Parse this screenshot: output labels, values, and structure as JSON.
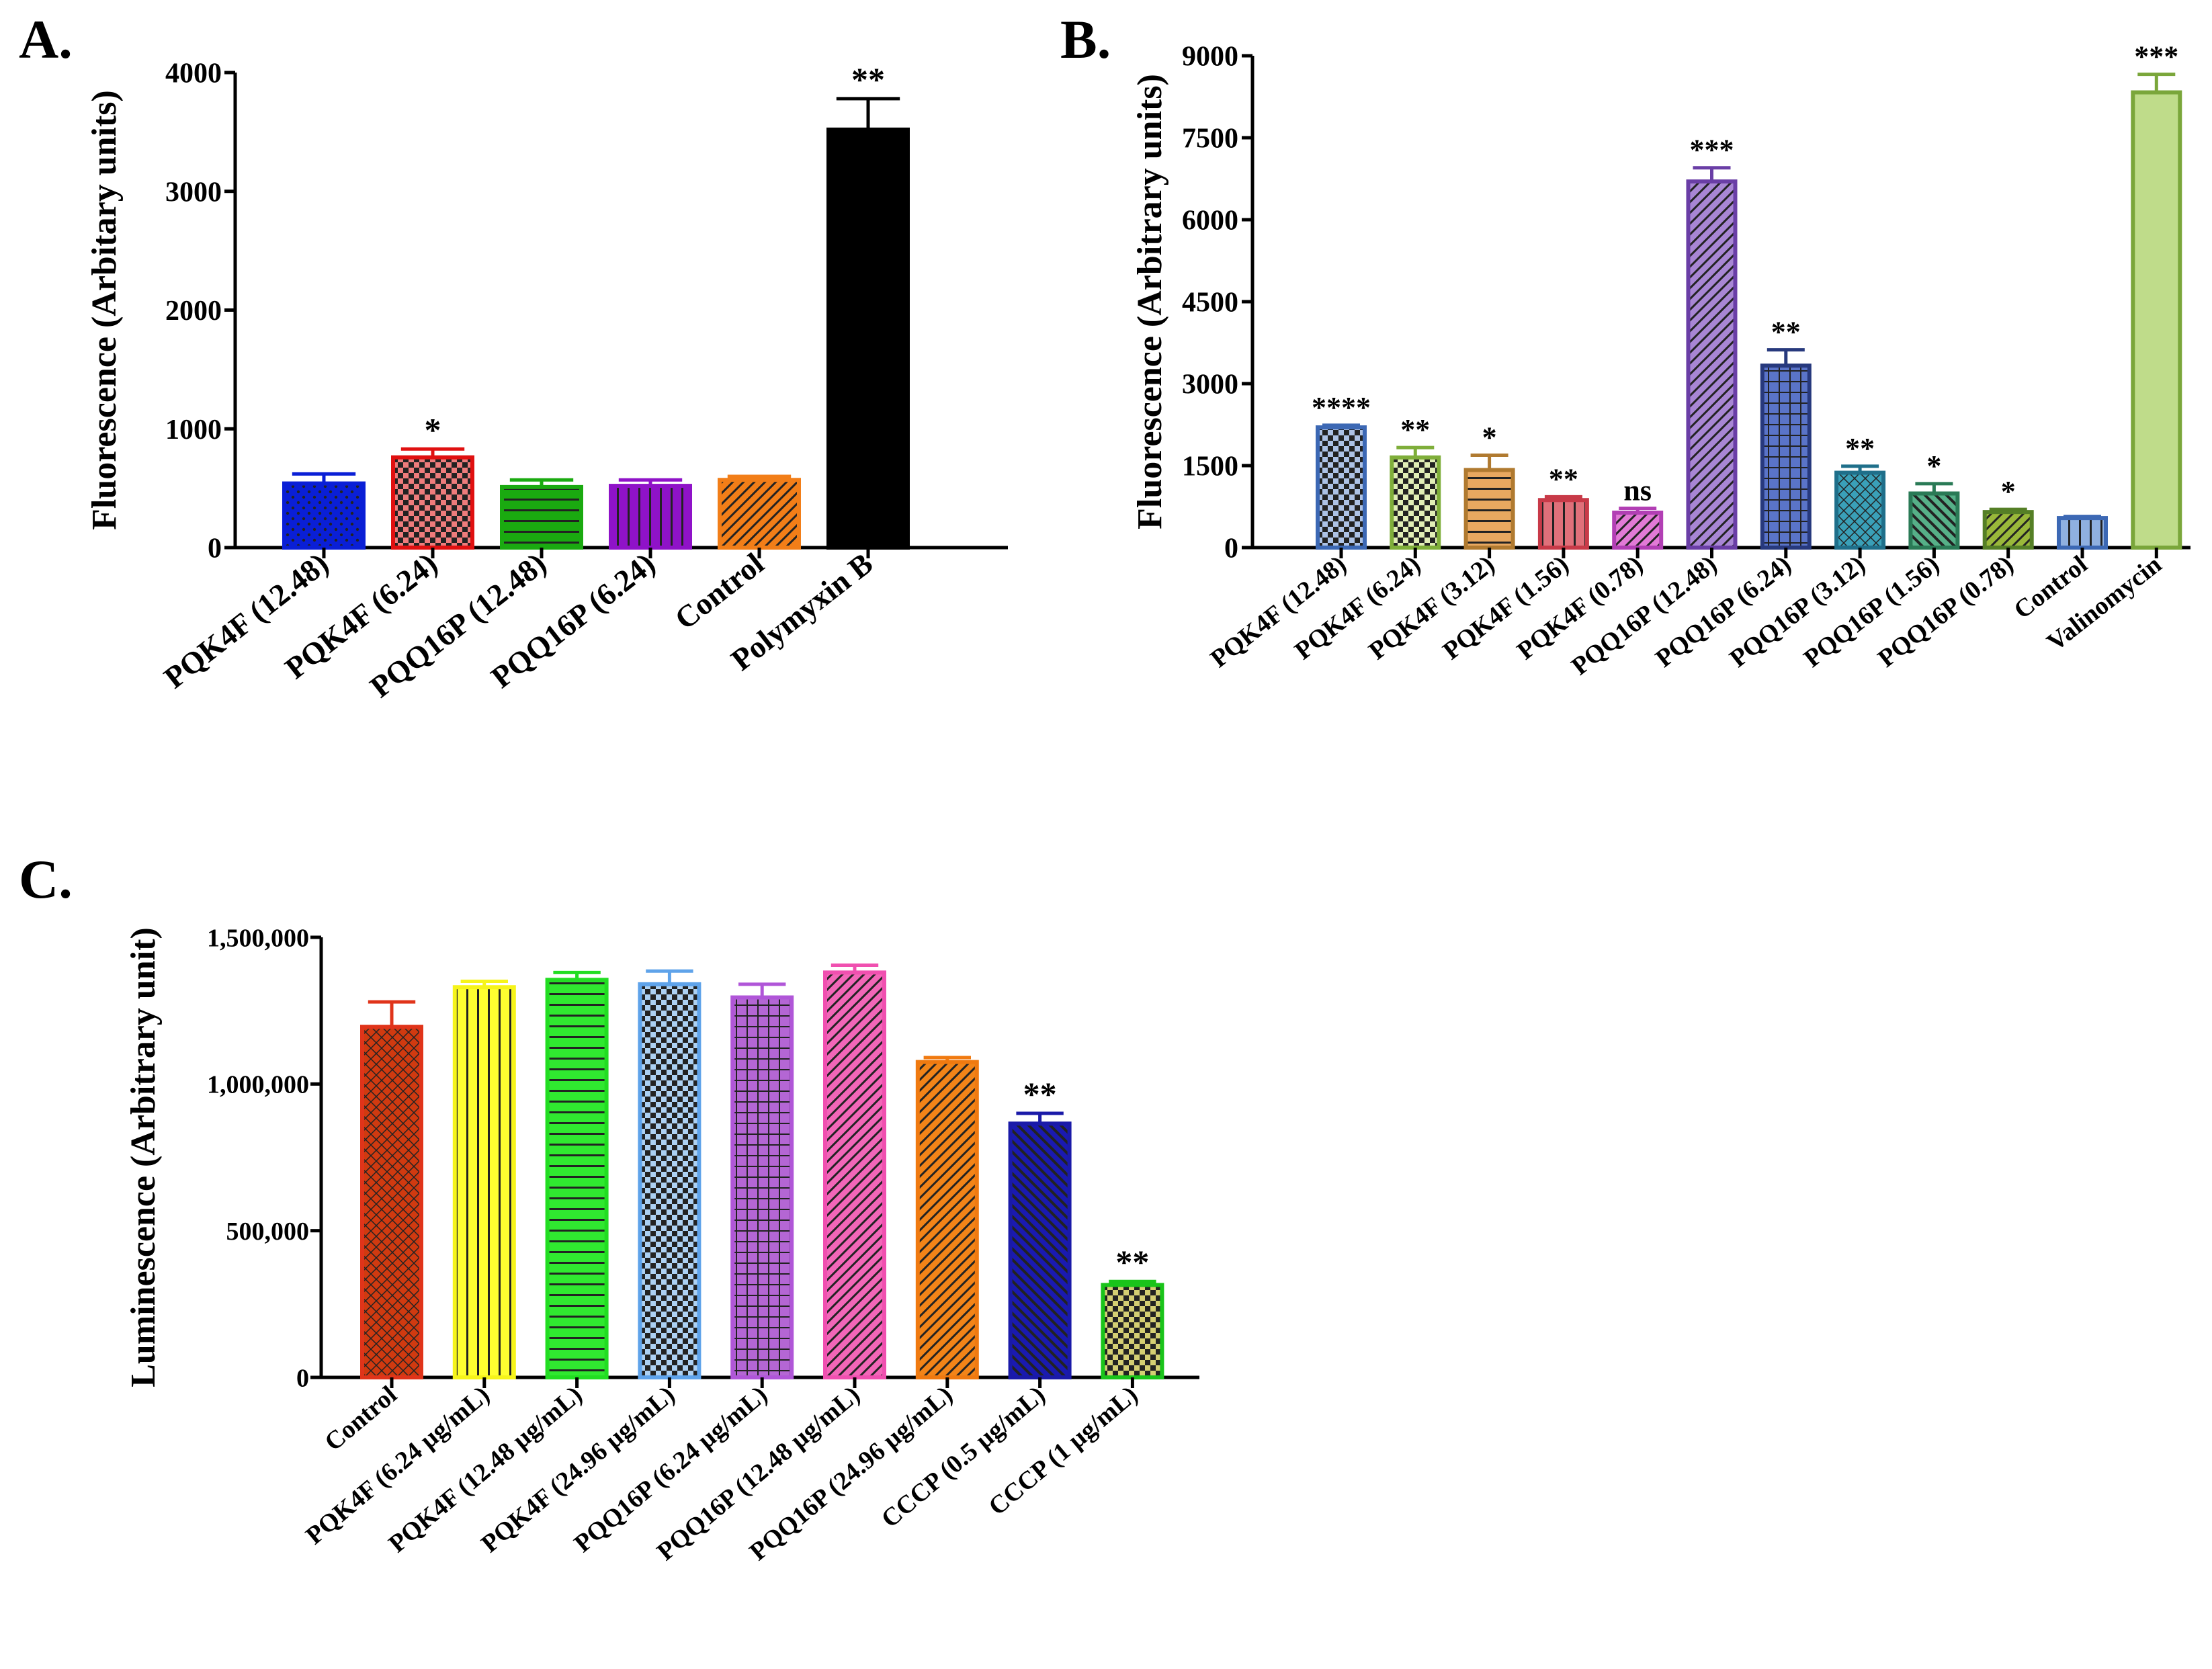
{
  "panels": {
    "a": {
      "label": "A."
    },
    "b": {
      "label": "B."
    },
    "c": {
      "label": "C."
    }
  },
  "chart_data": [
    {
      "id": "a",
      "type": "bar",
      "ylabel": "Fluorescence (Arbitary units)",
      "ylim": [
        0,
        4000
      ],
      "yticks": [
        0,
        1000,
        2000,
        3000,
        4000
      ],
      "ytick_labels": [
        "0",
        "1000",
        "2000",
        "3000",
        "4000"
      ],
      "categories": [
        "PQK4F (12.48)",
        "PQK4F (6.24)",
        "PQQ16P (12.48)",
        "PQQ16P (6.24)",
        "Control",
        "Polymyxin B"
      ],
      "values": [
        540,
        760,
        510,
        520,
        570,
        3520
      ],
      "errors": [
        80,
        70,
        60,
        50,
        30,
        260
      ],
      "significance": [
        "",
        "*",
        "",
        "",
        "",
        "**"
      ],
      "colors": [
        "#0a1fd6",
        "#e01010",
        "#1aaa10",
        "#8f12c8",
        "#f27e18",
        "#000000"
      ],
      "patterns": [
        "dots",
        "checker",
        "hlines",
        "vlines",
        "diag",
        "solid"
      ]
    },
    {
      "id": "b",
      "type": "bar",
      "ylabel": "Fluorescence (Arbitrary units)",
      "ylim": [
        0,
        9000
      ],
      "yticks": [
        0,
        1500,
        3000,
        4500,
        6000,
        7500,
        9000
      ],
      "ytick_labels": [
        "0",
        "1500",
        "3000",
        "4500",
        "6000",
        "7500",
        "9000"
      ],
      "categories": [
        "PQK4F (12.48)",
        "PQK4F (6.24)",
        "PQK4F (3.12)",
        "PQK4F (1.56)",
        "PQK4F (0.78)",
        "PQQ16P (12.48)",
        "PQQ16P (6.24)",
        "PQQ16P (3.12)",
        "PQQ16P (1.56)",
        "PQQ16P (0.78)",
        "Control",
        "Valinomycin"
      ],
      "values": [
        2200,
        1650,
        1420,
        870,
        640,
        6700,
        3330,
        1370,
        990,
        650,
        540,
        8330
      ],
      "errors": [
        40,
        180,
        270,
        60,
        80,
        250,
        290,
        120,
        180,
        50,
        30,
        330
      ],
      "significance": [
        "****",
        "**",
        "*",
        "**",
        "ns",
        "***",
        "**",
        "**",
        "*",
        "*",
        "",
        "***"
      ],
      "colors": [
        "#3c68b4",
        "#7fae3a",
        "#b07a30",
        "#c83a48",
        "#b23fb4",
        "#6a3ea6",
        "#27397d",
        "#1f6f8a",
        "#2a7a56",
        "#557f26",
        "#3c68b4",
        "#7aa63a"
      ],
      "fills": [
        "#6a8fd0",
        "#c8e07a",
        "#e8a860",
        "#e0707a",
        "#e27ad6",
        "#a886d4",
        "#5a74c8",
        "#3aa0b8",
        "#56b088",
        "#9ab83a",
        "#8fb0e0",
        "#bfdc8a"
      ],
      "patterns": [
        "checker",
        "checker",
        "hlines",
        "vlines",
        "diag",
        "diag",
        "grid",
        "hatch",
        "diag2",
        "diag",
        "vlines",
        "solid"
      ]
    },
    {
      "id": "c",
      "type": "bar",
      "ylabel": "Luminescence (Arbitrary unit)",
      "ylim": [
        0,
        1500000
      ],
      "yticks": [
        0,
        500000,
        1000000,
        1500000
      ],
      "ytick_labels": [
        "0",
        "500,000",
        "1,000,000",
        "1,500,000"
      ],
      "categories": [
        "Control",
        "PQK4F (6.24 µg/mL)",
        "PQK4F (12.48 µg/mL)",
        "PQK4F (24.96 µg/mL)",
        "PQQ16P (6.24 µg/mL)",
        "PQQ16P (12.48 µg/mL)",
        "PQQ16P (24.96 µg/mL)",
        "CCCP (0.5 µg/mL)",
        "CCCP (1 µg/mL)"
      ],
      "values": [
        1195000,
        1330000,
        1355000,
        1340000,
        1295000,
        1380000,
        1075000,
        865000,
        315000
      ],
      "errors": [
        85000,
        20000,
        25000,
        45000,
        45000,
        25000,
        15000,
        35000,
        12000
      ],
      "significance": [
        "",
        "",
        "",
        "",
        "",
        "",
        "",
        "**",
        "**"
      ],
      "colors": [
        "#e0341a",
        "#f6f41a",
        "#22dd22",
        "#5fa3ea",
        "#b056d8",
        "#f050b0",
        "#f07a10",
        "#1a1aa8",
        "#1ac41a"
      ],
      "fills": [
        "#d03a10",
        "#ffff30",
        "#30e830",
        "#6aaae8",
        "#b466d4",
        "#f266b8",
        "#f28418",
        "#1a1ab0",
        "#b0a800"
      ],
      "patterns": [
        "hatch",
        "vlines",
        "hlines",
        "checker",
        "grid",
        "diag",
        "diag",
        "diag2",
        "checker"
      ]
    }
  ]
}
